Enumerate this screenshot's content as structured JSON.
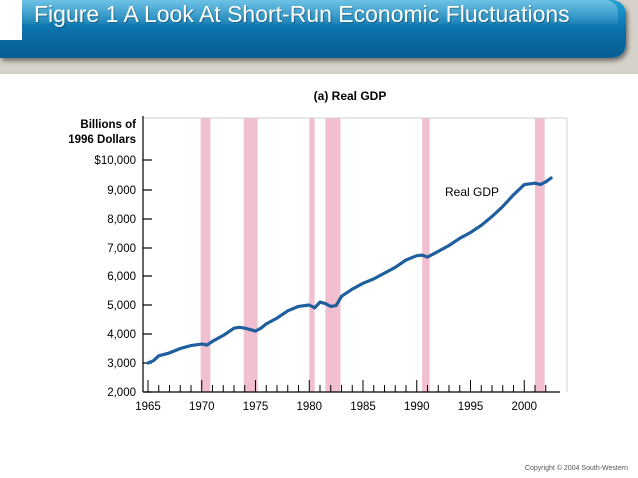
{
  "slide": {
    "title": "Figure 1 A Look At Short-Run Economic Fluctuations",
    "copyright": "Copyright © 2004  South-Western"
  },
  "chart_data": {
    "type": "line",
    "title": "(a) Real GDP",
    "ylabel": "Billions of\n1996 Dollars",
    "xlabel": "",
    "xlim": [
      1965,
      2003
    ],
    "ylim": [
      2000,
      10000
    ],
    "x_ticks": [
      1965,
      1970,
      1975,
      1980,
      1985,
      1990,
      1995,
      2000
    ],
    "y_ticks": [
      2000,
      3000,
      4000,
      5000,
      6000,
      7000,
      8000,
      9000,
      10000
    ],
    "y_tick_labels": [
      "2,000",
      "3,000",
      "4,000",
      "5,000",
      "6,000",
      "7,000",
      "8,000",
      "9,000",
      "$10,000"
    ],
    "recessions": [
      [
        1969.9,
        1970.8
      ],
      [
        1973.9,
        1975.2
      ],
      [
        1980.0,
        1980.5
      ],
      [
        1981.5,
        1982.9
      ],
      [
        1990.5,
        1991.2
      ],
      [
        2001.0,
        2001.9
      ]
    ],
    "colors": {
      "line": "#1f5f9e",
      "recession": "#f2bfd0",
      "title_bar": "#0b6fa8"
    },
    "series": [
      {
        "name": "Real GDP",
        "x": [
          1965,
          1965.5,
          1966,
          1967,
          1968,
          1969,
          1970,
          1970.5,
          1971,
          1972,
          1973,
          1973.5,
          1974,
          1974.5,
          1975,
          1975.5,
          1976,
          1977,
          1978,
          1979,
          1980,
          1980.5,
          1981,
          1981.5,
          1982,
          1982.5,
          1983,
          1984,
          1985,
          1986,
          1987,
          1988,
          1989,
          1990,
          1990.5,
          1991,
          1992,
          1993,
          1994,
          1995,
          1996,
          1997,
          1998,
          1999,
          2000,
          2001,
          2001.5,
          2002,
          2002.5
        ],
        "y": [
          3000,
          3080,
          3250,
          3350,
          3500,
          3600,
          3650,
          3620,
          3750,
          3950,
          4200,
          4230,
          4200,
          4150,
          4100,
          4200,
          4350,
          4550,
          4800,
          4950,
          5000,
          4900,
          5100,
          5050,
          4950,
          4980,
          5300,
          5550,
          5750,
          5900,
          6100,
          6300,
          6550,
          6700,
          6720,
          6650,
          6850,
          7050,
          7300,
          7500,
          7750,
          8050,
          8400,
          8800,
          9150,
          9200,
          9150,
          9250,
          9380
        ]
      }
    ],
    "annotations": [
      {
        "text": "Real GDP",
        "x": 1996,
        "y": 8100
      }
    ]
  }
}
